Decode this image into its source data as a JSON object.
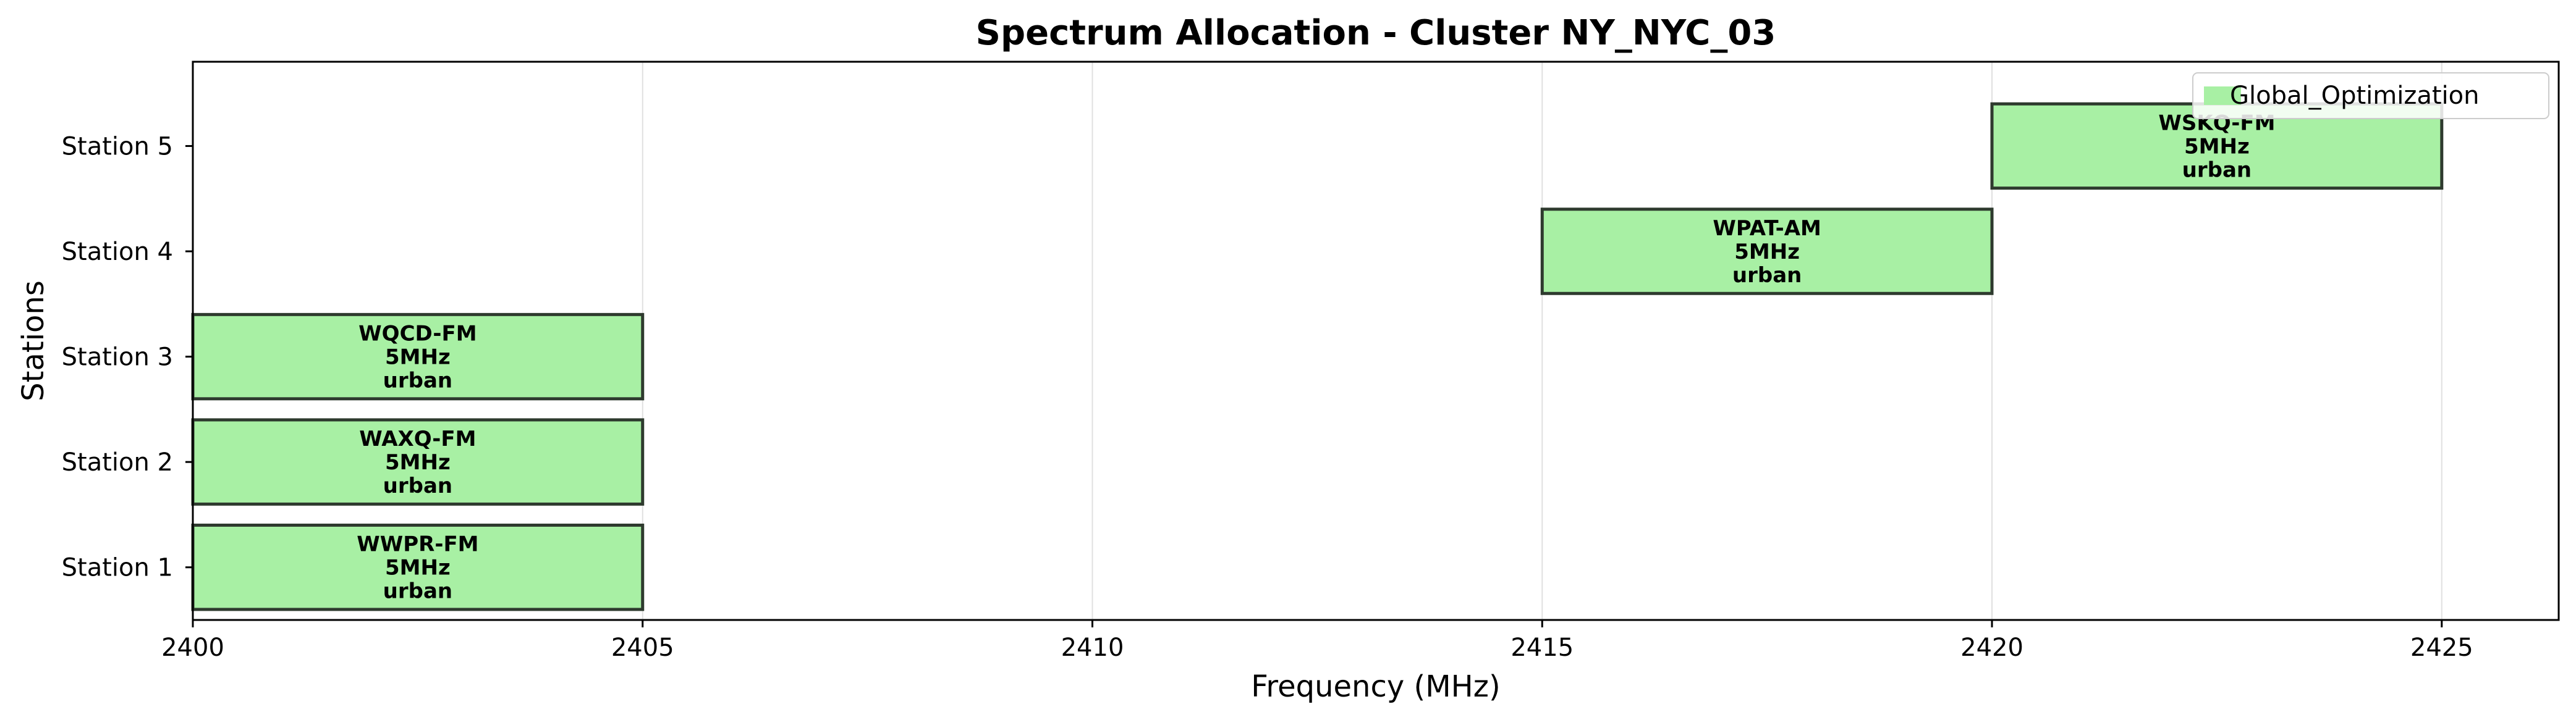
{
  "chart_data": {
    "type": "bar",
    "orientation": "horizontal-range",
    "title": "Spectrum Allocation - Cluster NY_NYC_03",
    "xlabel": "Frequency (MHz)",
    "ylabel": "Stations",
    "xlim": [
      2400,
      2426.3
    ],
    "xticks": [
      2400,
      2405,
      2410,
      2415,
      2420,
      2425
    ],
    "grid": "x",
    "legend": {
      "placement": "top-right",
      "entries": [
        {
          "label": "Global_Optimization",
          "color": "#a8f0a4"
        }
      ]
    },
    "categories": [
      "Station 1",
      "Station 2",
      "Station 3",
      "Station 4",
      "Station 5"
    ],
    "bars": [
      {
        "station": "Station 1",
        "start": 2400,
        "end": 2405,
        "callsign": "WWPR-FM",
        "bandwidth": "5MHz",
        "environment": "urban"
      },
      {
        "station": "Station 2",
        "start": 2400,
        "end": 2405,
        "callsign": "WAXQ-FM",
        "bandwidth": "5MHz",
        "environment": "urban"
      },
      {
        "station": "Station 3",
        "start": 2400,
        "end": 2405,
        "callsign": "WQCD-FM",
        "bandwidth": "5MHz",
        "environment": "urban"
      },
      {
        "station": "Station 4",
        "start": 2415,
        "end": 2420,
        "callsign": "WPAT-AM",
        "bandwidth": "5MHz",
        "environment": "urban"
      },
      {
        "station": "Station 5",
        "start": 2420,
        "end": 2425,
        "callsign": "WSKQ-FM",
        "bandwidth": "5MHz",
        "environment": "urban"
      }
    ],
    "colors": {
      "bar_fill": "#a8f0a4",
      "bar_edge": "#2e3a2e",
      "grid": "#e0e0e0",
      "axis": "#000000"
    }
  }
}
